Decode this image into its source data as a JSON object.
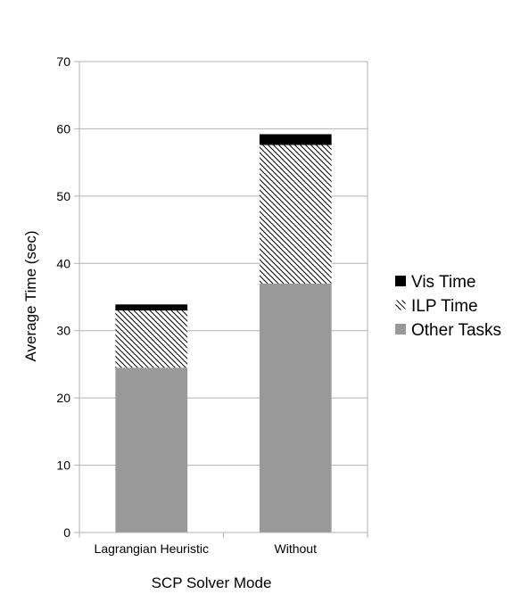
{
  "chart_data": {
    "type": "bar",
    "stacked": true,
    "title": "",
    "xlabel": "SCP Solver Mode",
    "ylabel": "Average Time (sec)",
    "categories": [
      "Lagrangian Heuristic",
      "Without"
    ],
    "ylim": [
      0,
      70
    ],
    "yticks": [
      0,
      10,
      20,
      30,
      40,
      50,
      60,
      70
    ],
    "grid": true,
    "legend_position": "right",
    "series": [
      {
        "name": "Other Tasks",
        "values": [
          24.5,
          37.0
        ],
        "color": "#999999",
        "pattern": "solid"
      },
      {
        "name": "ILP Time",
        "values": [
          8.5,
          20.6
        ],
        "color": "#000000",
        "pattern": "diagonal-hatch"
      },
      {
        "name": "Vis Time",
        "values": [
          0.9,
          1.6
        ],
        "color": "#000000",
        "pattern": "solid"
      }
    ],
    "legend_order": [
      "Vis Time",
      "ILP Time",
      "Other Tasks"
    ]
  }
}
